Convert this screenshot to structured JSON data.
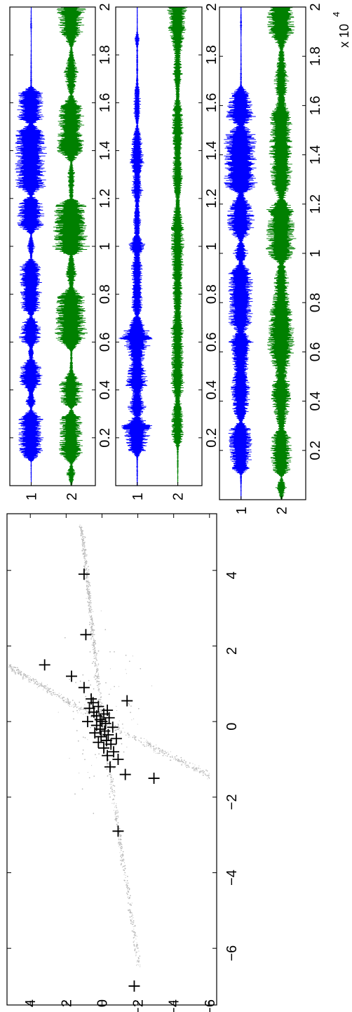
{
  "figure": {
    "exponent_label": "x 10",
    "exponent_power": "4"
  },
  "chart_data": [
    {
      "type": "scatter",
      "rotation": "90-ccw",
      "xlim": [
        -7.5,
        5.5
      ],
      "ylim": [
        -6.4,
        5.3
      ],
      "x_ticks": [
        -6,
        -4,
        -2,
        0,
        2,
        4
      ],
      "x_tick_labels": [
        "−6",
        "−4",
        "−2",
        "0",
        "2",
        "4"
      ],
      "y_ticks": [
        4,
        2,
        0,
        -2,
        -4,
        -6
      ],
      "y_tick_labels": [
        "4",
        "2",
        "0",
        "−2",
        "−4",
        "−6"
      ],
      "dot_color": "#b8b8b8",
      "marker_color": "#000000",
      "marker": "+",
      "points": [
        {
          "x": 3.9,
          "y": 1.0
        },
        {
          "x": 2.3,
          "y": 0.9
        },
        {
          "x": 1.5,
          "y": 3.2
        },
        {
          "x": 1.2,
          "y": 1.7
        },
        {
          "x": 0.9,
          "y": 1.0
        },
        {
          "x": 0.6,
          "y": 0.6
        },
        {
          "x": 0.55,
          "y": -1.4
        },
        {
          "x": 0.5,
          "y": 0.5
        },
        {
          "x": 0.4,
          "y": 0.2
        },
        {
          "x": 0.35,
          "y": 0.7
        },
        {
          "x": 0.3,
          "y": -0.3
        },
        {
          "x": 0.25,
          "y": 0.45
        },
        {
          "x": 0.2,
          "y": -0.1
        },
        {
          "x": 0.15,
          "y": 0.3
        },
        {
          "x": 0.1,
          "y": -0.4
        },
        {
          "x": 0.05,
          "y": 0.1
        },
        {
          "x": 0.0,
          "y": 0.0
        },
        {
          "x": 0.0,
          "y": 0.8
        },
        {
          "x": -0.05,
          "y": -0.2
        },
        {
          "x": -0.1,
          "y": 0.3
        },
        {
          "x": -0.15,
          "y": -0.6
        },
        {
          "x": -0.2,
          "y": 0.1
        },
        {
          "x": -0.25,
          "y": -0.15
        },
        {
          "x": -0.3,
          "y": 0.4
        },
        {
          "x": -0.35,
          "y": -0.35
        },
        {
          "x": -0.4,
          "y": 0.05
        },
        {
          "x": -0.45,
          "y": -0.8
        },
        {
          "x": -0.5,
          "y": -0.25
        },
        {
          "x": -0.55,
          "y": 0.2
        },
        {
          "x": -0.6,
          "y": -0.5
        },
        {
          "x": -0.7,
          "y": -0.1
        },
        {
          "x": -0.8,
          "y": -0.65
        },
        {
          "x": -0.9,
          "y": -0.3
        },
        {
          "x": -1.0,
          "y": -0.9
        },
        {
          "x": -1.2,
          "y": -0.45
        },
        {
          "x": -1.4,
          "y": -1.3
        },
        {
          "x": -1.5,
          "y": -2.9
        },
        {
          "x": -2.9,
          "y": -0.9
        },
        {
          "x": -7.0,
          "y": -1.8
        }
      ]
    },
    {
      "type": "line",
      "rotation": "90-ccw",
      "xlim": [
        0,
        20000
      ],
      "x_ticks": [
        2000,
        4000,
        6000,
        8000,
        10000,
        12000,
        14000,
        16000,
        18000,
        20000
      ],
      "x_tick_labels": [
        "0.2",
        "0.4",
        "0.6",
        "0.8",
        "1",
        "1.2",
        "1.4",
        "1.6",
        "1.8",
        "2"
      ],
      "y_tick_labels": [
        "1",
        "2"
      ],
      "series": [
        {
          "color": "#0000ff",
          "envelope": [
            [
              0,
              0.02
            ],
            [
              1000,
              0.04
            ],
            [
              1300,
              0.6
            ],
            [
              2800,
              0.6
            ],
            [
              3200,
              0.05
            ],
            [
              3500,
              0.3
            ],
            [
              3900,
              0.1
            ],
            [
              4300,
              0.6
            ],
            [
              5100,
              0.5
            ],
            [
              5300,
              0.1
            ],
            [
              5500,
              0.2
            ],
            [
              5800,
              0.1
            ],
            [
              6100,
              0.6
            ],
            [
              6800,
              0.45
            ],
            [
              7100,
              0.05
            ],
            [
              7400,
              0.5
            ],
            [
              9200,
              0.55
            ],
            [
              9500,
              0.05
            ],
            [
              10000,
              0.2
            ],
            [
              10500,
              0.05
            ],
            [
              10900,
              0.7
            ],
            [
              11900,
              0.65
            ],
            [
              12100,
              0.05
            ],
            [
              12500,
              0.75
            ],
            [
              14800,
              0.8
            ],
            [
              15100,
              0.1
            ],
            [
              15300,
              0.7
            ],
            [
              16400,
              0.6
            ],
            [
              16700,
              0.05
            ],
            [
              18800,
              0.02
            ],
            [
              19200,
              0.05
            ],
            [
              20000,
              0.02
            ]
          ]
        },
        {
          "color": "#008000",
          "envelope": [
            [
              0,
              0.03
            ],
            [
              500,
              0.25
            ],
            [
              900,
              0.05
            ],
            [
              1300,
              0.6
            ],
            [
              2800,
              0.55
            ],
            [
              3200,
              0.05
            ],
            [
              3500,
              0.5
            ],
            [
              4200,
              0.6
            ],
            [
              4800,
              0.1
            ],
            [
              5600,
              0.05
            ],
            [
              6100,
              0.8
            ],
            [
              7900,
              0.7
            ],
            [
              8300,
              0.1
            ],
            [
              8900,
              0.3
            ],
            [
              9600,
              0.1
            ],
            [
              9900,
              0.9
            ],
            [
              11700,
              0.8
            ],
            [
              12000,
              0.1
            ],
            [
              13000,
              0.2
            ],
            [
              13500,
              0.05
            ],
            [
              14000,
              0.7
            ],
            [
              15800,
              0.6
            ],
            [
              16300,
              0.1
            ],
            [
              17200,
              0.4
            ],
            [
              18300,
              0.05
            ],
            [
              19000,
              0.6
            ],
            [
              20000,
              0.7
            ]
          ]
        }
      ]
    },
    {
      "type": "line",
      "rotation": "90-ccw",
      "xlim": [
        0,
        20000
      ],
      "x_ticks": [
        2000,
        4000,
        6000,
        8000,
        10000,
        12000,
        14000,
        16000,
        18000,
        20000
      ],
      "x_tick_labels": [
        "0.2",
        "0.4",
        "0.6",
        "0.8",
        "1",
        "1.2",
        "1.4",
        "1.6",
        "1.8",
        "2"
      ],
      "y_tick_labels": [
        "1",
        "2"
      ],
      "series": [
        {
          "color": "#0000ff",
          "envelope": [
            [
              0,
              0.03
            ],
            [
              1200,
              0.05
            ],
            [
              1500,
              0.45
            ],
            [
              2500,
              0.75
            ],
            [
              2900,
              0.15
            ],
            [
              3200,
              0.5
            ],
            [
              3900,
              0.2
            ],
            [
              4200,
              0.6
            ],
            [
              5200,
              0.35
            ],
            [
              5700,
              0.5
            ],
            [
              6200,
              0.9
            ],
            [
              6800,
              0.4
            ],
            [
              7100,
              0.1
            ],
            [
              7500,
              0.3
            ],
            [
              8400,
              0.25
            ],
            [
              9200,
              0.3
            ],
            [
              9600,
              0.15
            ],
            [
              10000,
              0.45
            ],
            [
              10500,
              0.15
            ],
            [
              11000,
              0.2
            ],
            [
              11800,
              0.1
            ],
            [
              12300,
              0.3
            ],
            [
              13000,
              0.2
            ],
            [
              13500,
              0.35
            ],
            [
              14500,
              0.25
            ],
            [
              15100,
              0.05
            ],
            [
              15600,
              0.2
            ],
            [
              16400,
              0.15
            ],
            [
              17000,
              0.05
            ],
            [
              18300,
              0.05
            ],
            [
              18600,
              0.15
            ],
            [
              19000,
              0.03
            ],
            [
              20000,
              0.02
            ]
          ]
        },
        {
          "color": "#008000",
          "envelope": [
            [
              0,
              0.02
            ],
            [
              1500,
              0.05
            ],
            [
              2000,
              0.3
            ],
            [
              3000,
              0.3
            ],
            [
              3600,
              0.15
            ],
            [
              4200,
              0.35
            ],
            [
              5200,
              0.3
            ],
            [
              6000,
              0.3
            ],
            [
              6500,
              0.35
            ],
            [
              7200,
              0.2
            ],
            [
              8200,
              0.25
            ],
            [
              9400,
              0.3
            ],
            [
              10200,
              0.35
            ],
            [
              11000,
              0.3
            ],
            [
              12000,
              0.1
            ],
            [
              12800,
              0.3
            ],
            [
              14000,
              0.2
            ],
            [
              14800,
              0.3
            ],
            [
              15700,
              0.25
            ],
            [
              16300,
              0.1
            ],
            [
              17200,
              0.25
            ],
            [
              18000,
              0.15
            ],
            [
              19000,
              0.45
            ],
            [
              20000,
              0.5
            ]
          ]
        }
      ]
    },
    {
      "type": "line",
      "rotation": "90-ccw",
      "xlim": [
        0,
        20000
      ],
      "x_ticks": [
        2000,
        4000,
        6000,
        8000,
        10000,
        12000,
        14000,
        16000,
        18000,
        20000
      ],
      "x_tick_labels": [
        "0.2",
        "0.4",
        "0.6",
        "0.8",
        "1",
        "1.2",
        "1.4",
        "1.6",
        "1.8",
        "2"
      ],
      "y_tick_labels": [
        "1",
        "2"
      ],
      "series": [
        {
          "color": "#0000ff",
          "envelope": [
            [
              0,
              0.02
            ],
            [
              1000,
              0.05
            ],
            [
              1300,
              0.5
            ],
            [
              2000,
              0.55
            ],
            [
              2800,
              0.6
            ],
            [
              3200,
              0.1
            ],
            [
              3500,
              0.4
            ],
            [
              4500,
              0.5
            ],
            [
              5200,
              0.35
            ],
            [
              5800,
              0.45
            ],
            [
              6500,
              0.6
            ],
            [
              6800,
              0.2
            ],
            [
              7200,
              0.6
            ],
            [
              9200,
              0.6
            ],
            [
              9600,
              0.1
            ],
            [
              10000,
              0.4
            ],
            [
              10500,
              0.1
            ],
            [
              11000,
              0.7
            ],
            [
              12000,
              0.6
            ],
            [
              12400,
              0.15
            ],
            [
              12700,
              0.8
            ],
            [
              14800,
              0.8
            ],
            [
              15200,
              0.2
            ],
            [
              15500,
              0.7
            ],
            [
              16400,
              0.6
            ],
            [
              16800,
              0.05
            ],
            [
              18800,
              0.02
            ],
            [
              19200,
              0.05
            ],
            [
              20000,
              0.02
            ]
          ]
        },
        {
          "color": "#008000",
          "envelope": [
            [
              0,
              0.03
            ],
            [
              500,
              0.3
            ],
            [
              900,
              0.05
            ],
            [
              1300,
              0.55
            ],
            [
              2500,
              0.5
            ],
            [
              2900,
              0.15
            ],
            [
              3300,
              0.3
            ],
            [
              4300,
              0.55
            ],
            [
              5200,
              0.3
            ],
            [
              6000,
              0.7
            ],
            [
              7500,
              0.6
            ],
            [
              8200,
              0.4
            ],
            [
              9000,
              0.35
            ],
            [
              9600,
              0.15
            ],
            [
              10000,
              0.75
            ],
            [
              11800,
              0.7
            ],
            [
              12200,
              0.15
            ],
            [
              12800,
              0.5
            ],
            [
              14000,
              0.6
            ],
            [
              15600,
              0.55
            ],
            [
              16200,
              0.2
            ],
            [
              17000,
              0.4
            ],
            [
              18300,
              0.1
            ],
            [
              19000,
              0.65
            ],
            [
              20000,
              0.7
            ]
          ]
        }
      ]
    }
  ]
}
